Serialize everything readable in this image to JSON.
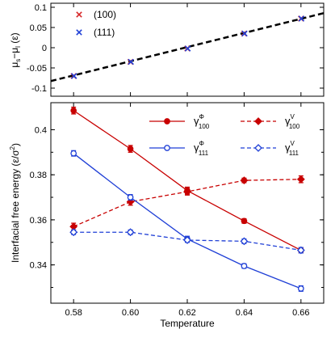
{
  "chart_data": [
    {
      "type": "scatter",
      "ylabel": "μs−μl (ε)",
      "ylim": [
        -0.12,
        0.11
      ],
      "xlim": [
        0.572,
        0.668
      ],
      "y_ticks": [
        "0.1",
        "0.05",
        "0",
        "-0.05",
        "-0.1"
      ],
      "y_tick_values": [
        0.1,
        0.05,
        0,
        -0.05,
        -0.1
      ],
      "legend_position": "top-left",
      "series": [
        {
          "name": "(100)",
          "marker": "x",
          "color": "#d62728",
          "x": [
            0.58,
            0.6,
            0.62,
            0.64,
            0.66
          ],
          "y": [
            -0.07,
            -0.035,
            -0.002,
            0.035,
            0.072
          ]
        },
        {
          "name": "(111)",
          "marker": "x",
          "color": "#1f3fd6",
          "x": [
            0.58,
            0.6,
            0.62,
            0.64,
            0.66
          ],
          "y": [
            -0.07,
            -0.035,
            -0.002,
            0.035,
            0.072
          ]
        }
      ],
      "fit_line": {
        "style": "dashed",
        "color": "#000000",
        "x": [
          0.572,
          0.668
        ],
        "y": [
          -0.0825,
          0.0855
        ]
      }
    },
    {
      "type": "line",
      "xlabel": "Temperature",
      "ylabel": "Interfacial free energy (ε/σ²)",
      "xlim": [
        0.572,
        0.668
      ],
      "ylim": [
        0.323,
        0.412
      ],
      "x_ticks": [
        "0.58",
        "0.60",
        "0.62",
        "0.64",
        "0.66"
      ],
      "x_tick_values": [
        0.58,
        0.6,
        0.62,
        0.64,
        0.66
      ],
      "y_ticks": [
        "0.4",
        "0.38",
        "0.36",
        "0.34"
      ],
      "y_tick_values": [
        0.4,
        0.38,
        0.36,
        0.34
      ],
      "legend_position": "top-right",
      "series": [
        {
          "name": "γ",
          "sup": "Φ",
          "sub": "100",
          "color": "#c80000",
          "dash": false,
          "marker": "circle-filled",
          "x": [
            0.58,
            0.6,
            0.62,
            0.64,
            0.66
          ],
          "y": [
            0.4085,
            0.3915,
            0.373,
            0.3595,
            0.3465
          ],
          "err": [
            0.0015,
            0.0015,
            0.0015,
            0.001,
            0.0012
          ]
        },
        {
          "name": "γ",
          "sup": "V",
          "sub": "100",
          "color": "#c80000",
          "dash": true,
          "marker": "diamond-filled",
          "x": [
            0.58,
            0.6,
            0.62,
            0.64,
            0.66
          ],
          "y": [
            0.357,
            0.368,
            0.3725,
            0.3775,
            0.378
          ],
          "err": [
            0.0015,
            0.0015,
            0.0015,
            0.001,
            0.0015
          ]
        },
        {
          "name": "γ",
          "sup": "Φ",
          "sub": "111",
          "color": "#1f3fd6",
          "dash": false,
          "marker": "circle-open",
          "x": [
            0.58,
            0.6,
            0.62,
            0.64,
            0.66
          ],
          "y": [
            0.3895,
            0.37,
            0.3515,
            0.3395,
            0.3295
          ],
          "err": [
            0.0012,
            0.0012,
            0.0012,
            0.001,
            0.0012
          ]
        },
        {
          "name": "γ",
          "sup": "V",
          "sub": "111",
          "color": "#1f3fd6",
          "dash": true,
          "marker": "diamond-open",
          "x": [
            0.58,
            0.6,
            0.62,
            0.64,
            0.66
          ],
          "y": [
            0.3545,
            0.3545,
            0.351,
            0.3505,
            0.3465
          ],
          "err": [
            0.001,
            0.001,
            0.001,
            0.001,
            0.0012
          ]
        }
      ]
    }
  ]
}
